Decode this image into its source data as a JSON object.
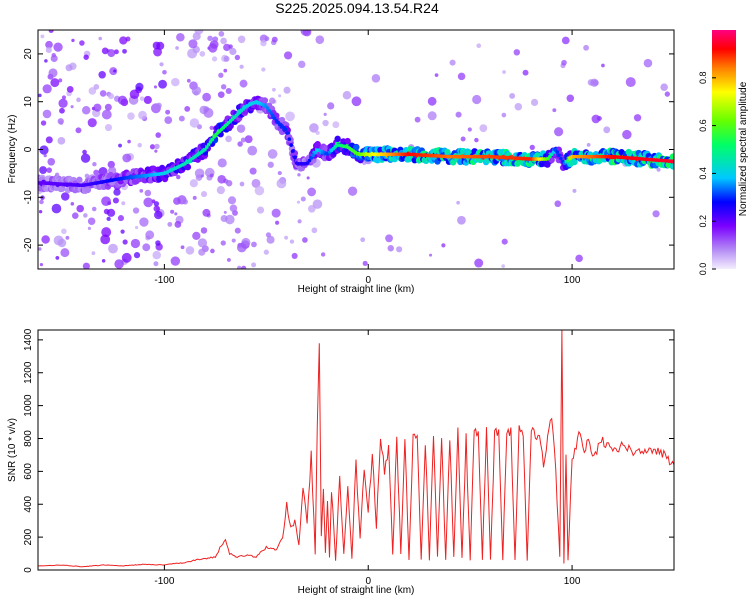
{
  "title": "S225.2025.094.13.54.R24",
  "chart_data": [
    {
      "type": "heatmap",
      "xlabel": "Height of straight line (km)",
      "ylabel": "Frequency (Hz)",
      "xlim": [
        -162,
        150
      ],
      "ylim": [
        -25,
        25
      ],
      "xticks": [
        -100,
        0,
        100
      ],
      "yticks": [
        -20,
        -10,
        0,
        10,
        20
      ],
      "colorbar": {
        "label": "Normalized spectral amplitude",
        "range": [
          0,
          1
        ],
        "ticks": [
          "0.0",
          "0.2",
          "0.4",
          "0.6",
          "0.8"
        ],
        "tick_values": [
          0,
          0.2,
          0.4,
          0.6,
          0.8
        ],
        "colormap": [
          "#c7b0f7",
          "#7a00ff",
          "#0000ff",
          "#00c8ff",
          "#00ff66",
          "#66ff00",
          "#ffff00",
          "#ff8000",
          "#ff0000",
          "#ff0080"
        ]
      },
      "ridge": {
        "x": [
          -160,
          -140,
          -120,
          -100,
          -90,
          -80,
          -75,
          -70,
          -65,
          -60,
          -55,
          -50,
          -45,
          -40,
          -35,
          -30,
          -25,
          -20,
          -15,
          -10,
          -5,
          0,
          20,
          40,
          60,
          80,
          88,
          92,
          96,
          100,
          120,
          150
        ],
        "frequency": [
          -7,
          -7.5,
          -6,
          -5,
          -3,
          0,
          3,
          5,
          7,
          9,
          10,
          9,
          6,
          4,
          -3,
          -3,
          0,
          -1,
          1,
          0.5,
          -1,
          -1,
          -1,
          -1.5,
          -1.5,
          -2,
          -2,
          0,
          -3,
          -1.5,
          -1.5,
          -2.5
        ],
        "amplitude": [
          0.2,
          0.22,
          0.3,
          0.4,
          0.45,
          0.45,
          0.55,
          0.5,
          0.45,
          0.4,
          0.4,
          0.35,
          0.3,
          0.3,
          0.25,
          0.25,
          0.4,
          0.3,
          0.5,
          0.55,
          0.6,
          0.7,
          0.92,
          0.85,
          0.88,
          0.9,
          0.6,
          0.3,
          0.3,
          0.8,
          0.92,
          0.95
        ]
      }
    },
    {
      "type": "line",
      "xlabel": "Height of straight line (km)",
      "ylabel": "SNR (10 * v/v)",
      "xlim": [
        -162,
        150
      ],
      "ylim": [
        0,
        1460
      ],
      "xticks": [
        -100,
        0,
        100
      ],
      "yticks": [
        0,
        200,
        400,
        600,
        800,
        1000,
        1200,
        1400
      ],
      "color": "#ee2222",
      "series": [
        {
          "x": [
            -162,
            -150,
            -140,
            -130,
            -120,
            -110,
            -100,
            -95,
            -90,
            -85,
            -80,
            -75,
            -72,
            -70,
            -68,
            -65,
            -60,
            -55,
            -50,
            -45,
            -42,
            -40,
            -38,
            -36,
            -34,
            -32,
            -30,
            -28,
            -26,
            -25,
            -24,
            -23,
            -22,
            -21,
            -20,
            -19,
            -18,
            -16,
            -14,
            -12,
            -10,
            -8,
            -6,
            -4,
            -2,
            0,
            2,
            4,
            6,
            8,
            10,
            12,
            14,
            16,
            18,
            20,
            22,
            24,
            26,
            28,
            30,
            32,
            34,
            36,
            38,
            40,
            42,
            44,
            46,
            48,
            50,
            52,
            54,
            56,
            58,
            60,
            62,
            64,
            66,
            68,
            70,
            72,
            74,
            76,
            78,
            80,
            82,
            84,
            86,
            88,
            90,
            92,
            94,
            95,
            96,
            97,
            98,
            100,
            102,
            104,
            106,
            108,
            110,
            115,
            120,
            125,
            130,
            135,
            140,
            145,
            150
          ],
          "y": [
            25,
            30,
            20,
            30,
            25,
            35,
            30,
            40,
            45,
            60,
            70,
            80,
            150,
            180,
            100,
            80,
            90,
            80,
            140,
            120,
            200,
            400,
            250,
            300,
            150,
            500,
            300,
            700,
            100,
            900,
            1350,
            200,
            500,
            100,
            400,
            80,
            500,
            60,
            550,
            100,
            500,
            70,
            650,
            200,
            600,
            350,
            700,
            250,
            800,
            600,
            750,
            100,
            800,
            100,
            780,
            60,
            820,
            800,
            60,
            780,
            60,
            800,
            80,
            830,
            60,
            800,
            80,
            840,
            70,
            810,
            60,
            850,
            820,
            60,
            840,
            60,
            830,
            850,
            60,
            850,
            840,
            60,
            860,
            840,
            60,
            850,
            820,
            830,
            640,
            800,
            950,
            600,
            80,
            1460,
            40,
            700,
            60,
            680,
            760,
            840,
            720,
            780,
            700,
            780,
            740,
            750,
            720,
            700,
            730,
            700,
            640
          ]
        }
      ]
    }
  ]
}
